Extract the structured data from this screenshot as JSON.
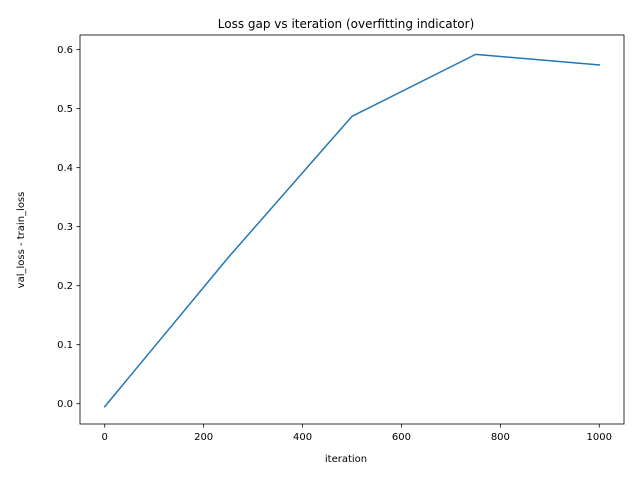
{
  "chart_data": {
    "type": "line",
    "title": "Loss gap vs iteration (overfitting indicator)",
    "xlabel": "iteration",
    "ylabel": "val_loss - train_loss",
    "xlim": [
      -50,
      1050
    ],
    "ylim": [
      -0.0344,
      0.6248
    ],
    "x_ticks": [
      0,
      200,
      400,
      600,
      800,
      1000
    ],
    "x_tick_labels": [
      "0",
      "200",
      "400",
      "600",
      "800",
      "1000"
    ],
    "y_ticks": [
      0.0,
      0.1,
      0.2,
      0.3,
      0.4,
      0.5,
      0.6
    ],
    "y_tick_labels": [
      "0.0",
      "0.1",
      "0.2",
      "0.3",
      "0.4",
      "0.5",
      "0.6"
    ],
    "grid": false,
    "series": [
      {
        "color": "#1f77b4",
        "x": [
          0,
          250,
          500,
          750,
          1000
        ],
        "y": [
          -0.005,
          0.248,
          0.487,
          0.592,
          0.574
        ]
      }
    ]
  }
}
